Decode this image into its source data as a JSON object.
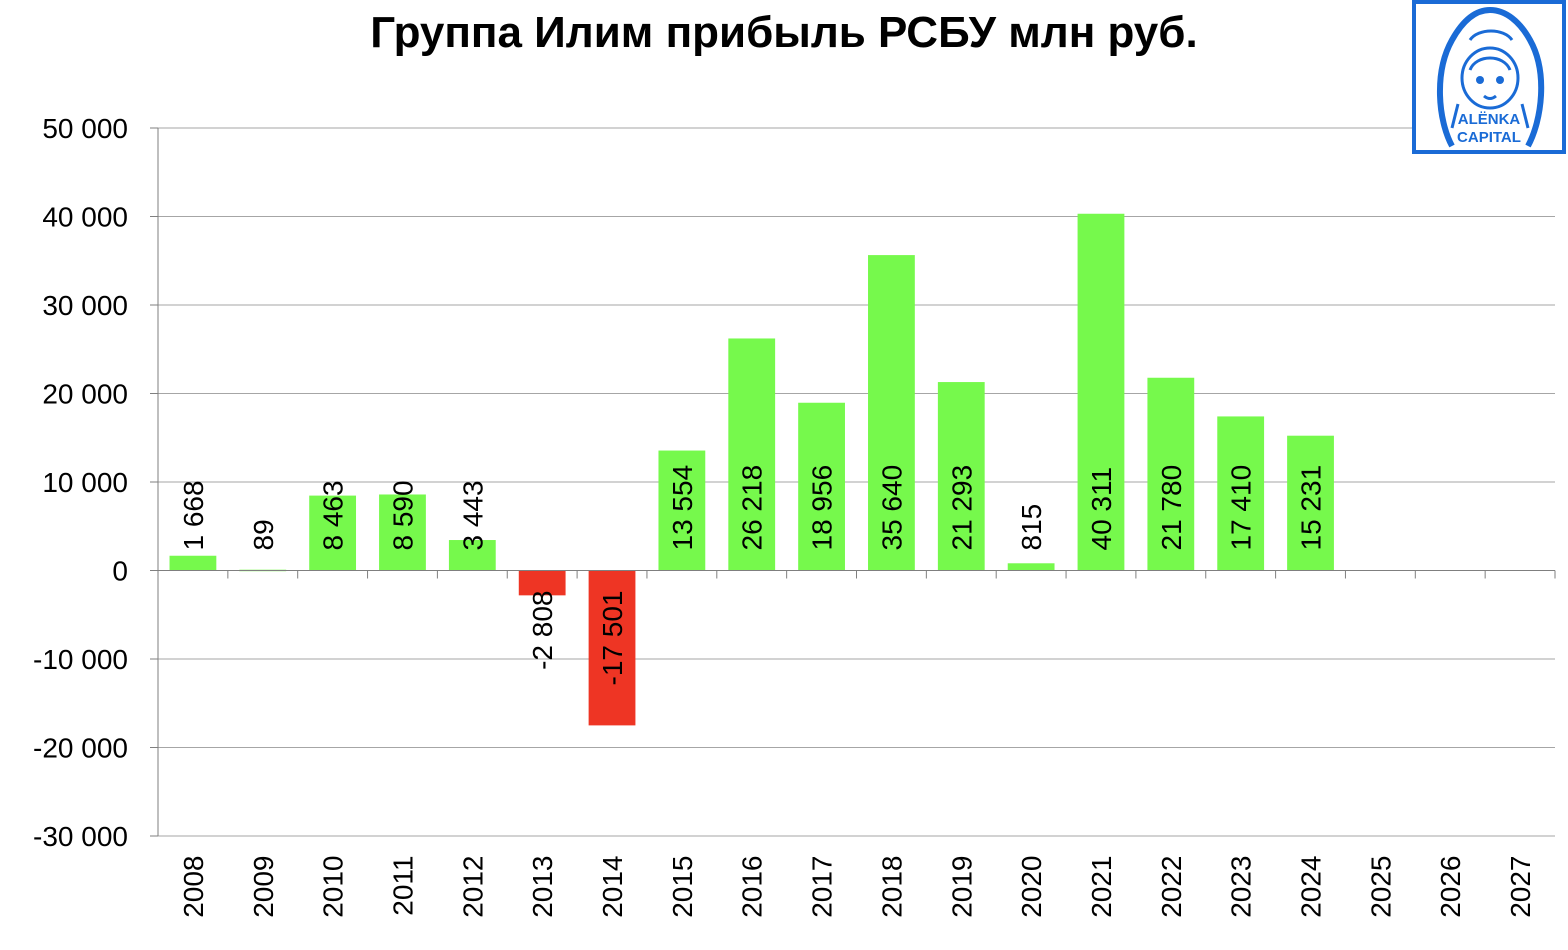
{
  "chart_data": {
    "type": "bar",
    "title": "Группа Илим прибыль РСБУ млн руб.",
    "xlabel": "",
    "ylabel": "",
    "categories": [
      "2008",
      "2009",
      "2010",
      "2011",
      "2012",
      "2013",
      "2014",
      "2015",
      "2016",
      "2017",
      "2018",
      "2019",
      "2020",
      "2021",
      "2022",
      "2023",
      "2024",
      "2025",
      "2026",
      "2027"
    ],
    "values": [
      1668,
      89,
      8463,
      8590,
      3443,
      -2808,
      -17501,
      13554,
      26218,
      18956,
      35640,
      21293,
      815,
      40311,
      21780,
      17410,
      15231,
      null,
      null,
      null
    ],
    "data_labels": [
      "1 668",
      "89",
      "8 463",
      "8 590",
      "3 443",
      "-2 808",
      "-17 501",
      "13 554",
      "26 218",
      "18 956",
      "35 640",
      "21 293",
      "815",
      "40 311",
      "21 780",
      "17 410",
      "15 231",
      "",
      "",
      ""
    ],
    "ylim": [
      -30000,
      50000
    ],
    "yticks": [
      50000,
      40000,
      30000,
      20000,
      10000,
      0,
      -10000,
      -20000,
      -30000
    ],
    "ytick_labels": [
      "50 000",
      "40 000",
      "30 000",
      "20 000",
      "10 000",
      "0",
      "-10 000",
      "-20 000",
      "-30 000"
    ],
    "grid": true,
    "colors": {
      "positive": "#76f94c",
      "negative": "#ee3524",
      "grid": "#a6a6a6",
      "axis": "#7f7f7f"
    }
  },
  "logo": {
    "line1": "ALËNKA",
    "line2": "CAPITAL",
    "color": "#1a6bd6"
  }
}
